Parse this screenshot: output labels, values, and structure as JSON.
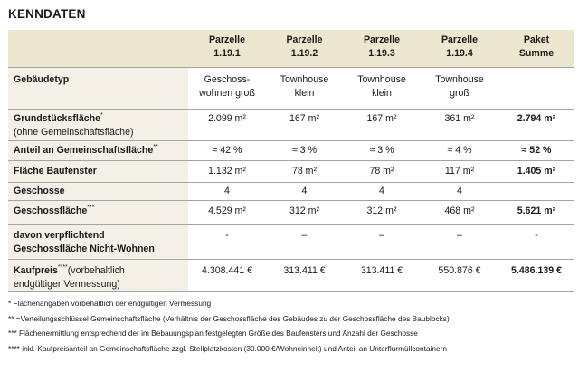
{
  "title": "KENNDATEN",
  "header": {
    "p1": {
      "line1": "Parzelle",
      "line2": "1.19.1"
    },
    "p2": {
      "line1": "Parzelle",
      "line2": "1.19.2"
    },
    "p3": {
      "line1": "Parzelle",
      "line2": "1.19.3"
    },
    "p4": {
      "line1": "Parzelle",
      "line2": "1.19.4"
    },
    "sum": {
      "line1": "Paket",
      "line2": "Summe"
    }
  },
  "rows": {
    "type": {
      "label": "Gebäudetyp",
      "v1a": "Geschoss-",
      "v1b": "wohnen groß",
      "v2a": "Townhouse",
      "v2b": "klein",
      "v3a": "Townhouse",
      "v3b": "klein",
      "v4a": "Townhouse",
      "v4b": "groß",
      "sum": ""
    },
    "gfl": {
      "label": "Grundstücksfläche",
      "sup": "*",
      "label2": "(ohne Gemeinschaftsfläche)",
      "v1": "2.099 m²",
      "v2": "167 m²",
      "v3": "167 m²",
      "v4": "361 m²",
      "sum": "2.794 m²"
    },
    "anteil": {
      "label": "Anteil an Gemeinschaftsfläche",
      "sup": "**",
      "v1": "≈ 42 %",
      "v2": "≈ 3 %",
      "v3": "≈ 3 %",
      "v4": "≈ 4 %",
      "sum": "≈ 52 %"
    },
    "baufenster": {
      "label": "Fläche Baufenster",
      "v1": "1.132 m²",
      "v2": "78 m²",
      "v3": "78 m²",
      "v4": "117 m²",
      "sum": "1.405 m²"
    },
    "geschosse": {
      "label": "Geschosse",
      "v1": "4",
      "v2": "4",
      "v3": "4",
      "v4": "4",
      "sum": ""
    },
    "gf": {
      "label": "Geschossfläche",
      "sup": "***",
      "v1": "4.529 m²",
      "v2": "312 m²",
      "v3": "312 m²",
      "v4": "468 m²",
      "sum": "5.621 m²"
    },
    "nw": {
      "label": "davon verpflichtend",
      "label2": "Geschossfläche Nicht-Wohnen",
      "v1": "-",
      "v2": "–",
      "v3": "–",
      "v4": "–",
      "sum": "-"
    },
    "kp": {
      "label": "Kaufpreis",
      "sup": "****",
      "suffix": "(vorbehaltlich",
      "label2": "endgültiger Vermessung)",
      "v1": "4.308.441 €",
      "v2": "313.411 €",
      "v3": "313.411 €",
      "v4": "550.876 €",
      "sum": "5.486.139 €"
    }
  },
  "footnotes": [
    "* Flächenangaben vorbehaltlich der endgültigen Vermessung",
    "** =Verteilungsschlüssel Gemeinschaftsfläche (Verhältnis der Geschossfläche des Gebäudes zu der Geschossfläche des Baublocks)",
    "*** Flächenermittlung entsprechend der im Bebauungsplan festgelegten Größe des Baufensters und Anzahl der Geschosse",
    "**** inkl. Kaufpreisanteil an Gemeinschaftsfläche zzgl. Stellplatzkosten (30.000 €/Wohneinheit) und Anteil an Unterflurmüllcontainern"
  ],
  "colors": {
    "header_bg": "#ede7d0",
    "label_bg": "#f3f1e7",
    "rule": "#a4a4a4"
  }
}
